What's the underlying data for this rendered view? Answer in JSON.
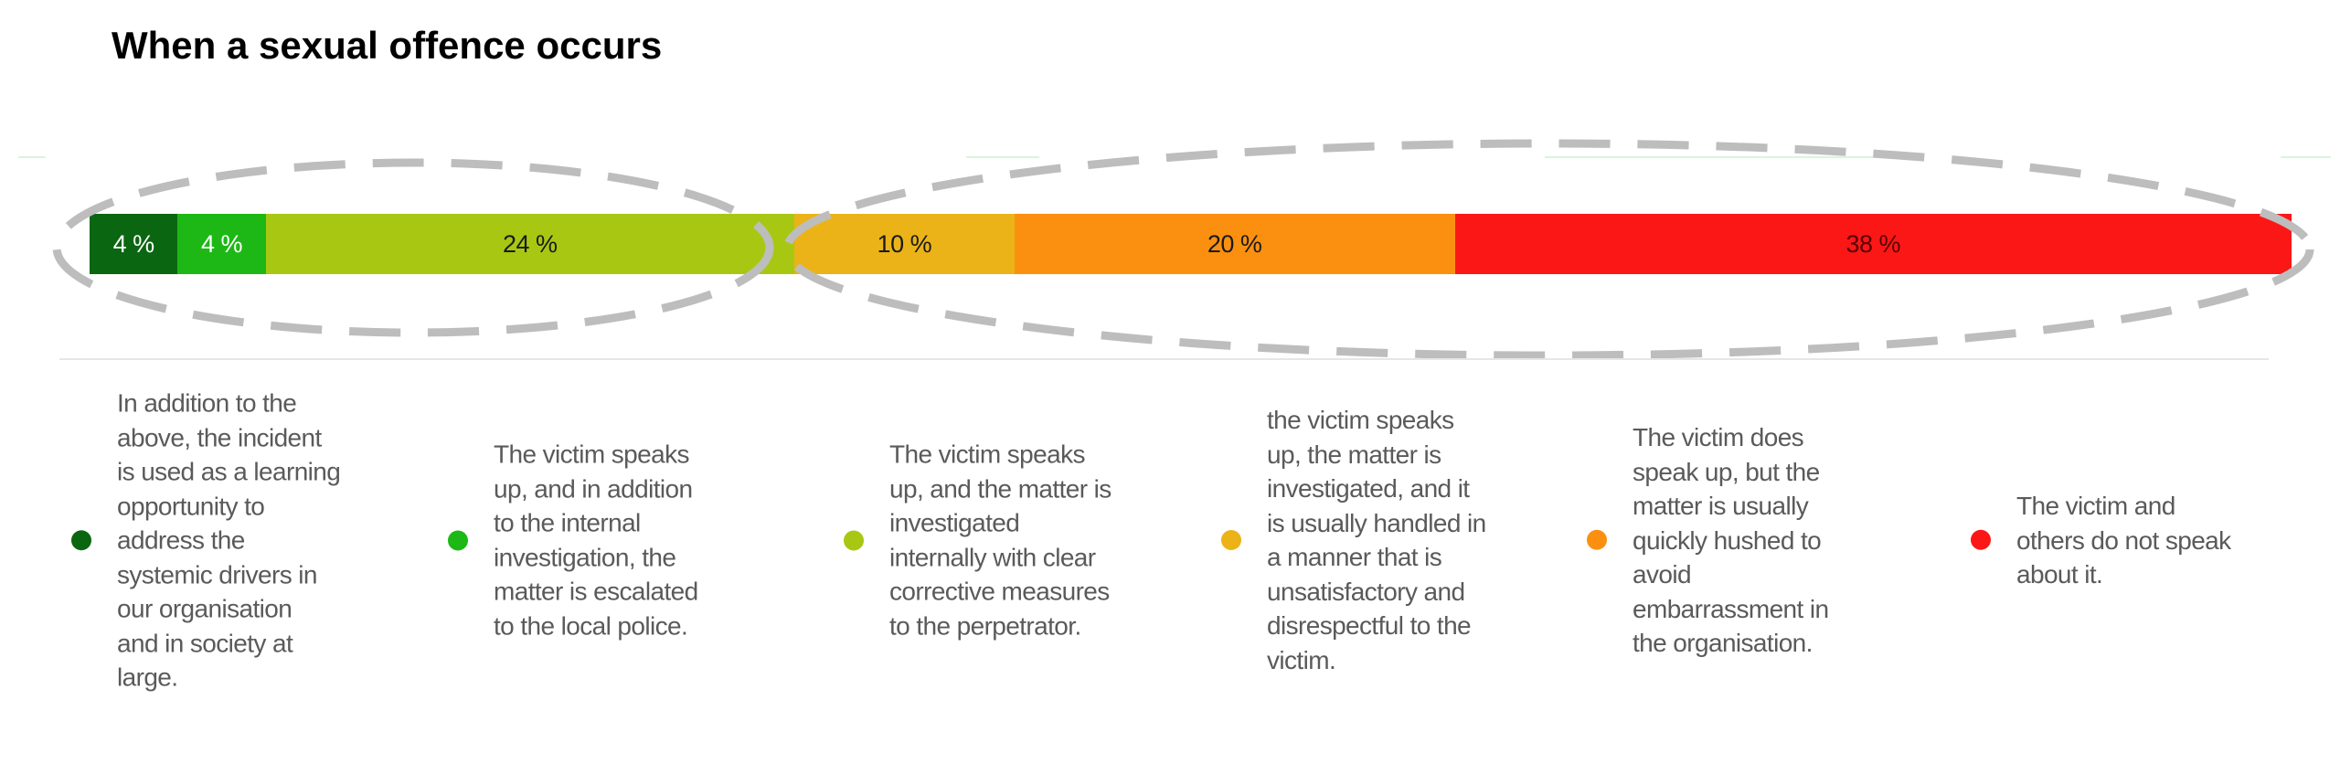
{
  "chart_data": {
    "type": "bar",
    "orientation": "horizontal-stacked",
    "title": "When a sexual offence occurs",
    "series": [
      {
        "name": "In addition to the\nabove, the incident\nis used as a learning\nopportunity to\naddress the\nsystemic drivers in\nour organisation\nand in society at\nlarge.",
        "value": 4,
        "label": "4 %",
        "color": "#0b6612",
        "text_color": "#ffffff"
      },
      {
        "name": "The victim speaks\nup, and in addition\nto the internal\ninvestigation, the\nmatter is escalated\nto the local police.",
        "value": 4,
        "label": "4 %",
        "color": "#1db815",
        "text_color": "#ffffff"
      },
      {
        "name": "The victim speaks\nup, and the matter is\ninvestigated\ninternally with clear\ncorrective measures\nto the perpetrator.",
        "value": 24,
        "label": "24 %",
        "color": "#a8c713",
        "text_color": "#1a1a1a"
      },
      {
        "name": "the victim speaks\nup, the matter is\ninvestigated, and it\nis usually handled in\na manner that is\nunsatisfactory and\ndisrespectful to the\nvictim.",
        "value": 10,
        "label": "10 %",
        "color": "#ebb317",
        "text_color": "#1a1a1a"
      },
      {
        "name": "The victim does\nspeak up, but the\nmatter is usually\nquickly hushed to\navoid\nembarrassment in\nthe organisation.",
        "value": 20,
        "label": "20 %",
        "color": "#fb9010",
        "text_color": "#1a1a1a"
      },
      {
        "name": "The victim and\nothers do not speak\nabout it.",
        "value": 38,
        "label": "38  %",
        "color": "#fc1717",
        "text_color": "#5a0000"
      }
    ],
    "xlim": [
      0,
      100
    ],
    "legend_position": "bottom",
    "annotations": [
      "dashed ellipse around first three segments",
      "dashed ellipse around last three segments"
    ]
  }
}
